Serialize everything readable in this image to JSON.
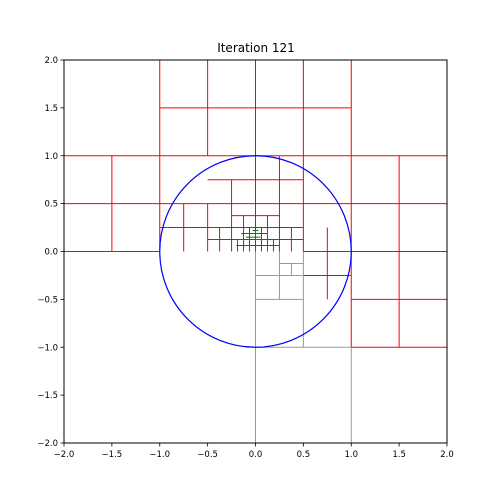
{
  "chart_data": {
    "type": "line",
    "title": "Iteration 121",
    "xlabel": "",
    "ylabel": "",
    "xlim": [
      -2.0,
      2.0
    ],
    "ylim": [
      -2.0,
      2.0
    ],
    "grid": false,
    "xticks": [
      -2.0,
      -1.5,
      -1.0,
      -0.5,
      0.0,
      0.5,
      1.0,
      1.5,
      2.0
    ],
    "yticks": [
      -2.0,
      -1.5,
      -1.0,
      -0.5,
      0.0,
      0.5,
      1.0,
      1.5,
      2.0
    ],
    "xtick_labels": [
      "−2.0",
      "−1.5",
      "−1.0",
      "−0.5",
      "0.0",
      "0.5",
      "1.0",
      "1.5",
      "2.0"
    ],
    "ytick_labels": [
      "−2.0",
      "−1.5",
      "−1.0",
      "−0.5",
      "0.0",
      "0.5",
      "1.0",
      "1.5",
      "2.0"
    ],
    "circle": {
      "center": [
        0,
        0
      ],
      "radius": 1,
      "color": "#0000ff"
    },
    "colors": {
      "red": "#ff0000",
      "gray": "#999999",
      "green": "#008000"
    },
    "series": [
      {
        "color": "#ff0000",
        "segments": [
          [
            [
              -2,
              1
            ],
            [
              2,
              1
            ]
          ],
          [
            [
              -2,
              0.5
            ],
            [
              2,
              0.5
            ]
          ],
          [
            [
              -2,
              0
            ],
            [
              -1,
              0
            ]
          ],
          [
            [
              -1,
              1.5
            ],
            [
              1,
              1.5
            ]
          ],
          [
            [
              -1,
              2
            ],
            [
              -1,
              0
            ]
          ],
          [
            [
              -0.5,
              2
            ],
            [
              -0.5,
              1
            ]
          ],
          [
            [
              0,
              2
            ],
            [
              0,
              0
            ]
          ],
          [
            [
              0.5,
              2
            ],
            [
              0.5,
              0
            ]
          ],
          [
            [
              1,
              2
            ],
            [
              1,
              -1
            ]
          ],
          [
            [
              -1.5,
              1
            ],
            [
              -1.5,
              0
            ]
          ],
          [
            [
              1.5,
              1
            ],
            [
              1.5,
              -1
            ]
          ],
          [
            [
              1,
              0
            ],
            [
              2,
              0
            ]
          ],
          [
            [
              1,
              -0.5
            ],
            [
              2,
              -0.5
            ]
          ],
          [
            [
              1,
              -1
            ],
            [
              2,
              -1
            ]
          ],
          [
            [
              -0.5,
              0.75
            ],
            [
              0.5,
              0.75
            ]
          ],
          [
            [
              -1,
              0.25
            ],
            [
              0.5,
              0.25
            ]
          ],
          [
            [
              -0.75,
              0.5
            ],
            [
              -0.75,
              0
            ]
          ],
          [
            [
              -0.5,
              0.5
            ],
            [
              -0.5,
              0
            ]
          ],
          [
            [
              -0.25,
              0.75
            ],
            [
              -0.25,
              0
            ]
          ],
          [
            [
              0.25,
              1
            ],
            [
              0.25,
              0
            ]
          ],
          [
            [
              -0.25,
              0.375
            ],
            [
              0.25,
              0.375
            ]
          ],
          [
            [
              -0.5,
              0.125
            ],
            [
              0.5,
              0.125
            ]
          ],
          [
            [
              -0.375,
              0.25
            ],
            [
              -0.375,
              0
            ]
          ],
          [
            [
              -0.125,
              0.375
            ],
            [
              -0.125,
              0
            ]
          ],
          [
            [
              0.125,
              0.375
            ],
            [
              0.125,
              0
            ]
          ],
          [
            [
              0.375,
              0.25
            ],
            [
              0.375,
              0
            ]
          ],
          [
            [
              0.5,
              0
            ],
            [
              1,
              0
            ]
          ],
          [
            [
              0.5,
              -0.25
            ],
            [
              1,
              -0.25
            ]
          ],
          [
            [
              0.75,
              0.25
            ],
            [
              0.75,
              -0.5
            ]
          ]
        ]
      },
      {
        "color": "#999999",
        "segments": [
          [
            [
              0,
              0
            ],
            [
              0,
              -2
            ]
          ],
          [
            [
              1,
              -1
            ],
            [
              1,
              -2
            ]
          ],
          [
            [
              0,
              -0.25
            ],
            [
              0.5,
              -0.25
            ]
          ],
          [
            [
              0,
              -0.5
            ],
            [
              0.5,
              -0.5
            ]
          ],
          [
            [
              0,
              -1
            ],
            [
              1,
              -1
            ]
          ],
          [
            [
              0.25,
              -0.125
            ],
            [
              0.5,
              -0.125
            ]
          ],
          [
            [
              0.25,
              0
            ],
            [
              0.25,
              -0.5
            ]
          ],
          [
            [
              0.375,
              -0.125
            ],
            [
              0.375,
              -0.25
            ]
          ],
          [
            [
              0.5,
              0
            ],
            [
              0.5,
              -1
            ]
          ]
        ]
      },
      {
        "color": "#008000",
        "segments": [
          [
            [
              -0.15,
              0.1875
            ],
            [
              0.125,
              0.1875
            ]
          ],
          [
            [
              -0.2,
              0.0625
            ],
            [
              0.25,
              0.0625
            ]
          ],
          [
            [
              -0.1,
              0.15
            ],
            [
              0.05,
              0.15
            ]
          ],
          [
            [
              -0.0625,
              0.25
            ],
            [
              -0.0625,
              0
            ]
          ],
          [
            [
              0.0625,
              0.25
            ],
            [
              0.0625,
              0
            ]
          ],
          [
            [
              -0.1875,
              0.125
            ],
            [
              -0.1875,
              0
            ]
          ],
          [
            [
              0.1875,
              0.125
            ],
            [
              0.1875,
              0
            ]
          ],
          [
            [
              -0.03125,
              0.21875
            ],
            [
              0.03125,
              0.21875
            ]
          ],
          [
            [
              -0.125,
              0.1
            ],
            [
              -0.125,
              0.03
            ]
          ]
        ]
      }
    ]
  }
}
